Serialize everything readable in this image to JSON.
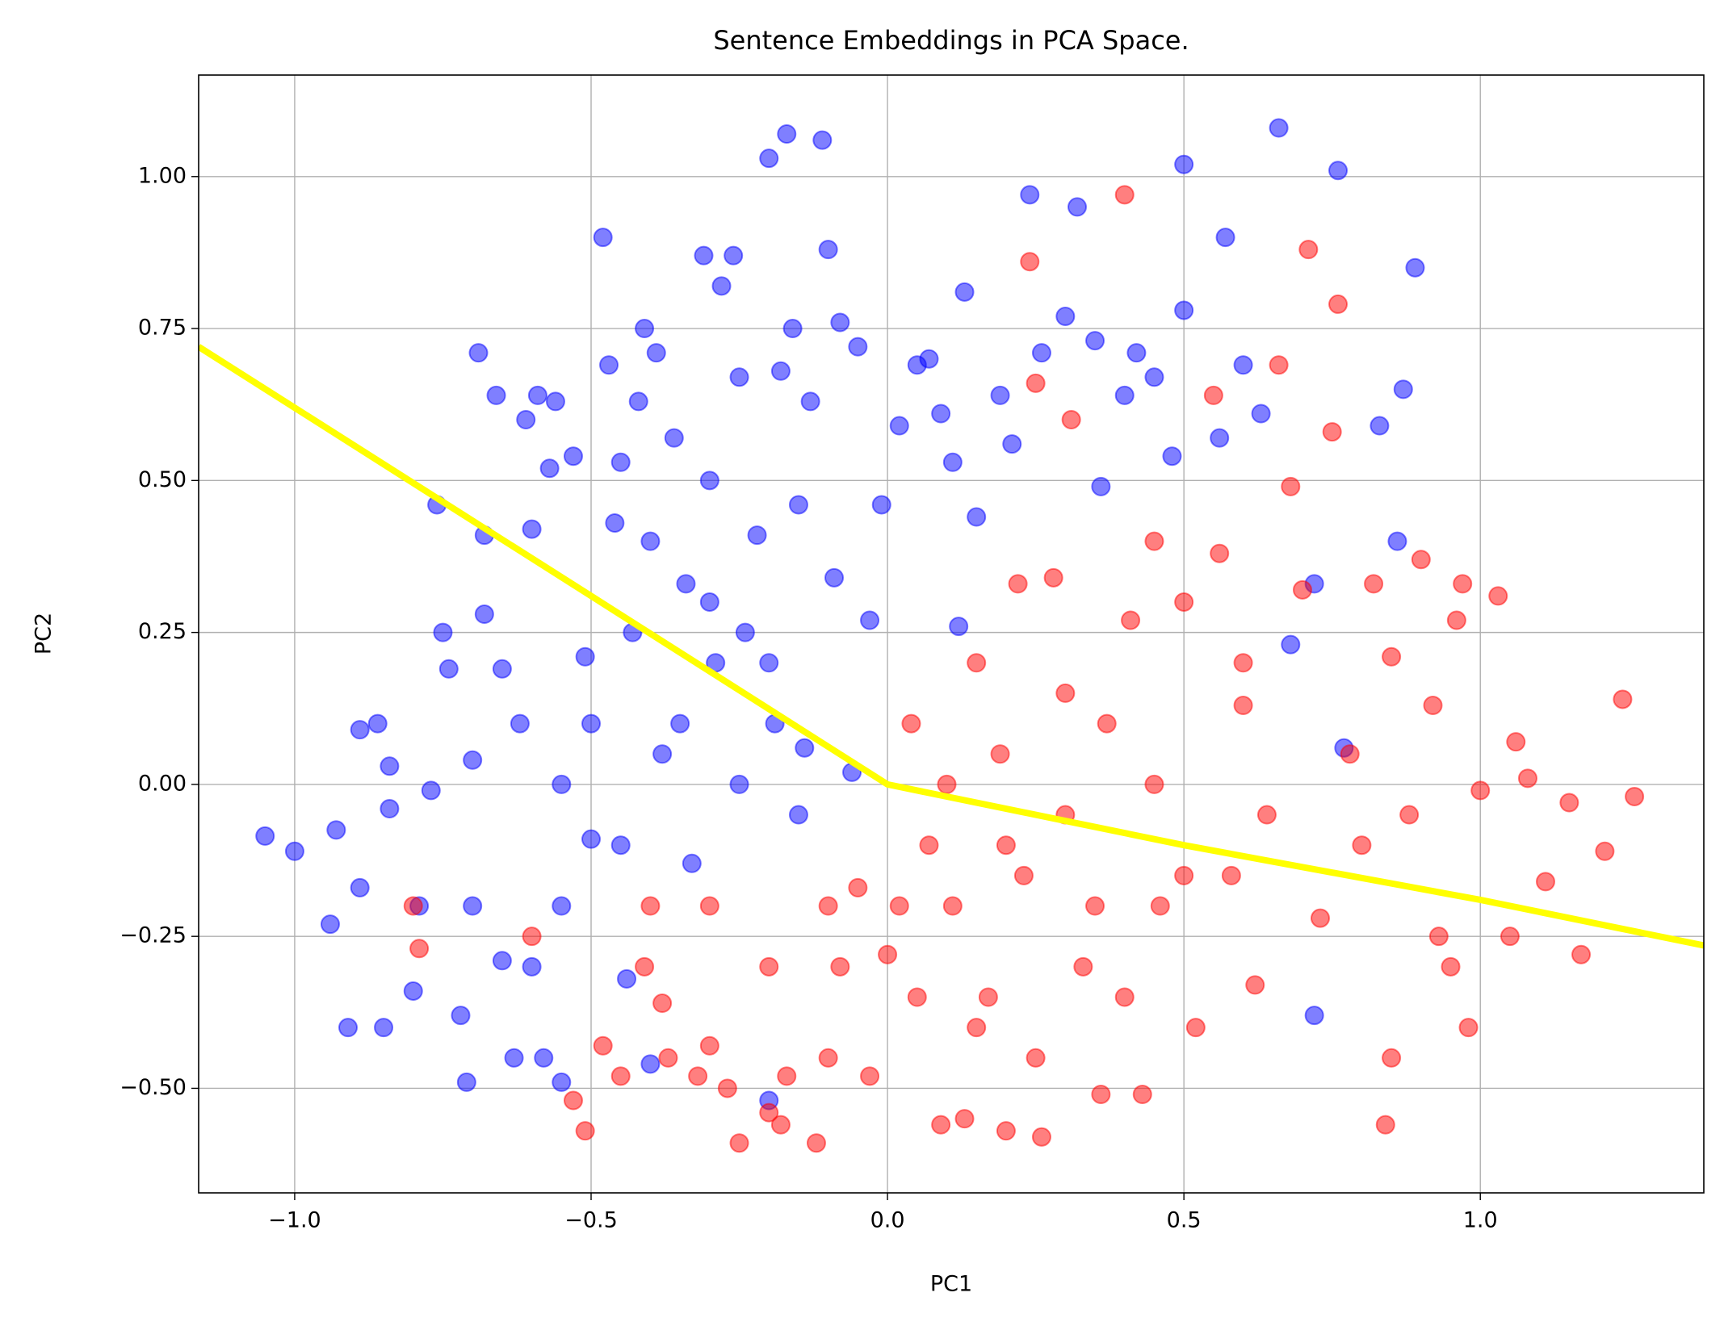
{
  "chart_data": {
    "type": "scatter",
    "title": "Sentence Embeddings in PCA Space.",
    "xlabel": "PC1",
    "ylabel": "PC2",
    "xlim": [
      -1.162,
      1.377
    ],
    "ylim": [
      -0.672,
      1.167
    ],
    "xticks": [
      {
        "value": -1.0,
        "label": "−1.0"
      },
      {
        "value": -0.5,
        "label": "−0.5"
      },
      {
        "value": 0.0,
        "label": "0.0"
      },
      {
        "value": 0.5,
        "label": "0.5"
      },
      {
        "value": 1.0,
        "label": "1.0"
      }
    ],
    "yticks": [
      {
        "value": -0.5,
        "label": "−0.50"
      },
      {
        "value": -0.25,
        "label": "−0.25"
      },
      {
        "value": 0.0,
        "label": "0.00"
      },
      {
        "value": 0.25,
        "label": "0.25"
      },
      {
        "value": 0.5,
        "label": "0.50"
      },
      {
        "value": 0.75,
        "label": "0.75"
      },
      {
        "value": 1.0,
        "label": "1.00"
      }
    ],
    "grid": true,
    "series": [
      {
        "type": "scatter",
        "color": "#0000ff",
        "alpha": 0.5,
        "x": [
          -1.05,
          -1.0,
          -0.94,
          -0.93,
          -0.91,
          -0.89,
          -0.89,
          -0.86,
          -0.85,
          -0.84,
          -0.84,
          -0.8,
          -0.79,
          -0.77,
          -0.76,
          -0.75,
          -0.74,
          -0.72,
          -0.71,
          -0.7,
          -0.69,
          -0.68,
          -0.68,
          -0.66,
          -0.65,
          -0.65,
          -0.63,
          -0.62,
          -0.61,
          -0.6,
          -0.59,
          -0.58,
          -0.57,
          -0.56,
          -0.55,
          -0.55,
          -0.53,
          -0.51,
          -0.5,
          -0.48,
          -0.47,
          -0.46,
          -0.45,
          -0.44,
          -0.43,
          -0.42,
          -0.41,
          -0.4,
          -0.39,
          -0.38,
          -0.36,
          -0.34,
          -0.33,
          -0.31,
          -0.3,
          -0.29,
          -0.28,
          -0.26,
          -0.25,
          -0.24,
          -0.22,
          -0.2,
          -0.19,
          -0.18,
          -0.17,
          -0.16,
          -0.15,
          -0.14,
          -0.13,
          -0.11,
          -0.1,
          -0.09,
          -0.08,
          -0.06,
          -0.05,
          -0.03,
          -0.01,
          0.02,
          0.05,
          0.07,
          0.09,
          0.11,
          0.13,
          0.15,
          0.19,
          0.21,
          0.24,
          0.26,
          0.3,
          0.32,
          0.35,
          0.36,
          0.4,
          0.42,
          0.45,
          0.48,
          0.5,
          0.5,
          0.56,
          0.57,
          0.6,
          0.63,
          0.66,
          0.68,
          0.72,
          0.76,
          0.77,
          0.83,
          0.86,
          0.87,
          0.89,
          0.72,
          0.12,
          -0.2,
          -0.6,
          -0.7,
          -0.45,
          -0.35,
          -0.25,
          -0.15,
          -0.55,
          -0.4,
          -0.3,
          -0.2,
          -0.5
        ],
        "values": [
          -0.085,
          -0.11,
          -0.23,
          -0.075,
          -0.4,
          -0.17,
          0.09,
          0.1,
          -0.4,
          0.03,
          -0.04,
          -0.34,
          -0.2,
          -0.01,
          0.46,
          0.25,
          0.19,
          -0.38,
          -0.49,
          0.04,
          0.71,
          0.28,
          0.41,
          0.64,
          -0.29,
          0.19,
          -0.45,
          0.1,
          0.6,
          0.42,
          0.64,
          -0.45,
          0.52,
          0.63,
          -0.2,
          -0.49,
          0.54,
          0.21,
          -0.09,
          0.9,
          0.69,
          0.43,
          0.53,
          -0.32,
          0.25,
          0.63,
          0.75,
          -0.46,
          0.71,
          0.05,
          0.57,
          0.33,
          -0.13,
          0.87,
          0.5,
          0.2,
          0.82,
          0.87,
          0.67,
          0.25,
          0.41,
          1.03,
          0.1,
          0.68,
          1.07,
          0.75,
          0.46,
          0.06,
          0.63,
          1.06,
          0.88,
          0.34,
          0.76,
          0.02,
          0.72,
          0.27,
          0.46,
          0.59,
          0.69,
          0.7,
          0.61,
          0.53,
          0.81,
          0.44,
          0.64,
          0.56,
          0.97,
          0.71,
          0.77,
          0.95,
          0.73,
          0.49,
          0.64,
          0.71,
          0.67,
          0.54,
          1.02,
          0.78,
          0.57,
          0.9,
          0.69,
          0.61,
          1.08,
          0.23,
          0.33,
          1.01,
          0.06,
          0.59,
          0.4,
          0.65,
          0.85,
          -0.38,
          0.26,
          -0.52,
          -0.3,
          -0.2,
          -0.1,
          0.1,
          0.0,
          -0.05,
          0.0,
          0.4,
          0.3,
          0.2,
          0.1
        ]
      },
      {
        "type": "scatter",
        "color": "#ff0000",
        "alpha": 0.5,
        "x": [
          -0.8,
          -0.79,
          -0.6,
          -0.53,
          -0.51,
          -0.48,
          -0.45,
          -0.41,
          -0.38,
          -0.37,
          -0.32,
          -0.3,
          -0.27,
          -0.25,
          -0.2,
          -0.18,
          -0.17,
          -0.12,
          -0.1,
          -0.08,
          -0.05,
          -0.03,
          0.0,
          0.02,
          0.04,
          0.07,
          0.09,
          0.11,
          0.13,
          0.15,
          0.17,
          0.19,
          0.2,
          0.22,
          0.23,
          0.25,
          0.24,
          0.26,
          0.28,
          0.3,
          0.31,
          0.33,
          0.36,
          0.37,
          0.4,
          0.41,
          0.43,
          0.45,
          0.46,
          0.5,
          0.52,
          0.55,
          0.56,
          0.58,
          0.6,
          0.62,
          0.64,
          0.66,
          0.68,
          0.7,
          0.71,
          0.73,
          0.75,
          0.76,
          0.78,
          0.8,
          0.82,
          0.84,
          0.85,
          0.88,
          0.9,
          0.92,
          0.95,
          0.97,
          0.98,
          1.0,
          1.03,
          1.05,
          1.06,
          1.08,
          1.11,
          1.15,
          1.17,
          1.21,
          1.24,
          1.26,
          0.96,
          0.93,
          0.85,
          0.6,
          0.35,
          0.15,
          -0.1,
          -0.2,
          -0.3,
          0.1,
          0.2,
          0.3,
          0.4,
          0.5,
          0.05,
          -0.4,
          0.25,
          0.45
        ],
        "values": [
          -0.2,
          -0.27,
          -0.25,
          -0.52,
          -0.57,
          -0.43,
          -0.48,
          -0.3,
          -0.36,
          -0.45,
          -0.48,
          -0.43,
          -0.5,
          -0.59,
          -0.54,
          -0.56,
          -0.48,
          -0.59,
          -0.45,
          -0.3,
          -0.17,
          -0.48,
          -0.28,
          -0.2,
          0.1,
          -0.1,
          -0.56,
          -0.2,
          -0.55,
          0.2,
          -0.35,
          0.05,
          -0.57,
          0.33,
          -0.15,
          0.66,
          0.86,
          -0.58,
          0.34,
          -0.05,
          0.6,
          -0.3,
          -0.51,
          0.1,
          0.97,
          0.27,
          -0.51,
          0.0,
          -0.2,
          0.3,
          -0.4,
          0.64,
          0.38,
          -0.15,
          0.2,
          -0.33,
          -0.05,
          0.69,
          0.49,
          0.32,
          0.88,
          -0.22,
          0.58,
          0.79,
          0.05,
          -0.1,
          0.33,
          -0.56,
          0.21,
          -0.05,
          0.37,
          0.13,
          -0.3,
          0.33,
          -0.4,
          -0.01,
          0.31,
          -0.25,
          0.07,
          0.01,
          -0.16,
          -0.03,
          -0.28,
          -0.11,
          0.14,
          -0.02,
          0.27,
          -0.25,
          -0.45,
          0.13,
          -0.2,
          -0.4,
          -0.2,
          -0.3,
          -0.2,
          0.0,
          -0.1,
          0.15,
          -0.35,
          -0.15,
          -0.35,
          -0.2,
          -0.45,
          0.4
        ]
      },
      {
        "type": "line",
        "color": "#ffff00",
        "x": [
          -1.162,
          -0.5,
          0.0,
          0.5,
          1.0,
          1.377
        ],
        "values": [
          0.72,
          0.31,
          0.0,
          -0.1,
          -0.19,
          -0.265
        ]
      }
    ]
  }
}
